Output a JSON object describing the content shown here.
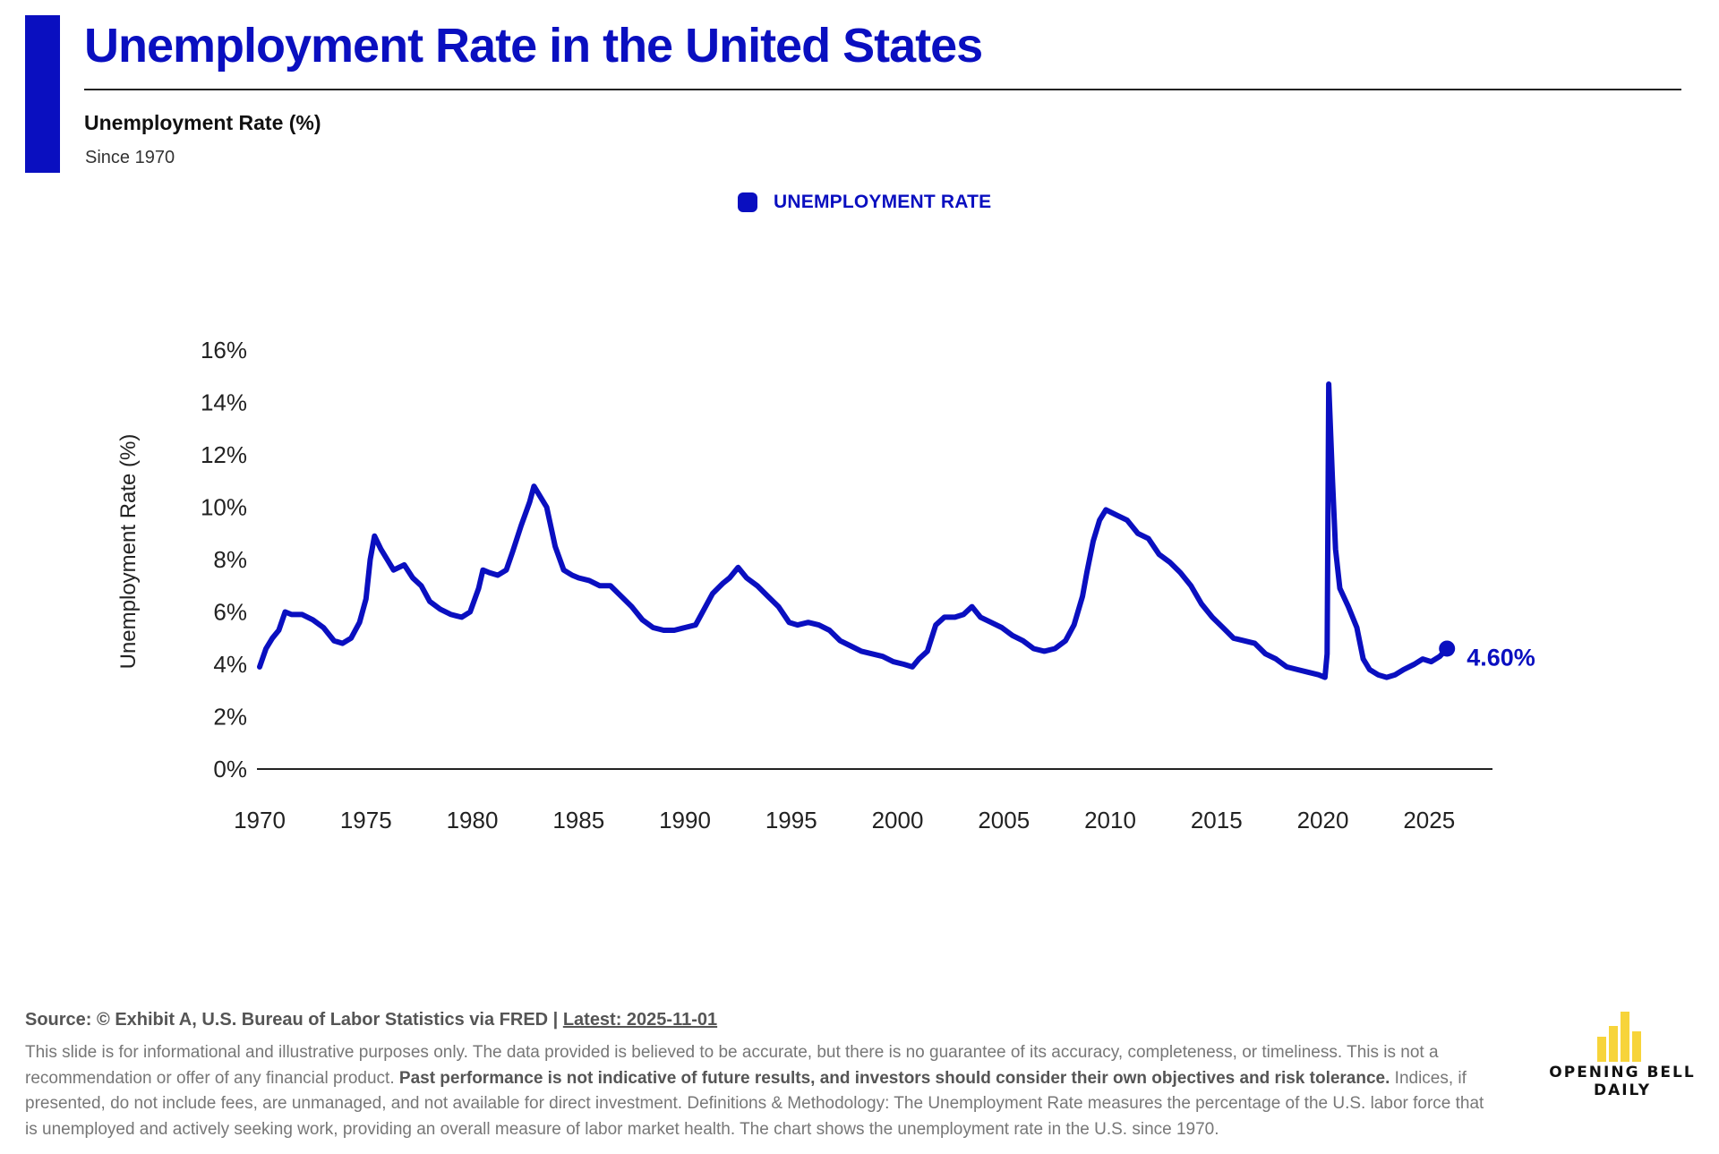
{
  "header": {
    "title": "Unemployment Rate in the United States",
    "subtitle": "Unemployment Rate (%)",
    "since": "Since 1970"
  },
  "colors": {
    "accent": "#0a0fc0",
    "logo": "#f7d43a"
  },
  "legend": {
    "label": "UNEMPLOYMENT RATE"
  },
  "chart_data": {
    "type": "line",
    "title": "Unemployment Rate in the United States",
    "xlabel": "",
    "ylabel": "Unemployment Rate (%)",
    "xlim": [
      1970,
      2026
    ],
    "ylim": [
      0,
      16
    ],
    "x_ticks": [
      1970,
      1975,
      1980,
      1985,
      1990,
      1995,
      2000,
      2005,
      2010,
      2015,
      2020,
      2025
    ],
    "y_ticks": [
      0,
      2,
      4,
      6,
      8,
      10,
      12,
      14,
      16
    ],
    "y_tick_labels": [
      "0%",
      "2%",
      "4%",
      "6%",
      "8%",
      "10%",
      "12%",
      "14%",
      "16%"
    ],
    "x_tick_labels": [
      "1970",
      "1975",
      "1980",
      "1985",
      "1990",
      "1995",
      "2000",
      "2005",
      "2010",
      "2015",
      "2020",
      "2025"
    ],
    "series": [
      {
        "name": "UNEMPLOYMENT RATE",
        "points": [
          [
            1970.0,
            3.9
          ],
          [
            1970.3,
            4.6
          ],
          [
            1970.6,
            5.0
          ],
          [
            1970.9,
            5.3
          ],
          [
            1971.2,
            6.0
          ],
          [
            1971.5,
            5.9
          ],
          [
            1972.0,
            5.9
          ],
          [
            1972.5,
            5.7
          ],
          [
            1973.0,
            5.4
          ],
          [
            1973.5,
            4.9
          ],
          [
            1973.9,
            4.8
          ],
          [
            1974.3,
            5.0
          ],
          [
            1974.7,
            5.6
          ],
          [
            1975.0,
            6.5
          ],
          [
            1975.2,
            8.0
          ],
          [
            1975.4,
            8.9
          ],
          [
            1975.7,
            8.4
          ],
          [
            1976.0,
            8.0
          ],
          [
            1976.3,
            7.6
          ],
          [
            1976.8,
            7.8
          ],
          [
            1977.2,
            7.3
          ],
          [
            1977.6,
            7.0
          ],
          [
            1978.0,
            6.4
          ],
          [
            1978.5,
            6.1
          ],
          [
            1979.0,
            5.9
          ],
          [
            1979.5,
            5.8
          ],
          [
            1979.9,
            6.0
          ],
          [
            1980.3,
            6.9
          ],
          [
            1980.5,
            7.6
          ],
          [
            1980.8,
            7.5
          ],
          [
            1981.2,
            7.4
          ],
          [
            1981.6,
            7.6
          ],
          [
            1981.9,
            8.3
          ],
          [
            1982.3,
            9.3
          ],
          [
            1982.7,
            10.2
          ],
          [
            1982.9,
            10.8
          ],
          [
            1983.2,
            10.4
          ],
          [
            1983.5,
            10.0
          ],
          [
            1983.9,
            8.5
          ],
          [
            1984.3,
            7.6
          ],
          [
            1984.7,
            7.4
          ],
          [
            1985.0,
            7.3
          ],
          [
            1985.5,
            7.2
          ],
          [
            1986.0,
            7.0
          ],
          [
            1986.5,
            7.0
          ],
          [
            1987.0,
            6.6
          ],
          [
            1987.5,
            6.2
          ],
          [
            1988.0,
            5.7
          ],
          [
            1988.5,
            5.4
          ],
          [
            1989.0,
            5.3
          ],
          [
            1989.5,
            5.3
          ],
          [
            1990.0,
            5.4
          ],
          [
            1990.5,
            5.5
          ],
          [
            1990.9,
            6.1
          ],
          [
            1991.3,
            6.7
          ],
          [
            1991.8,
            7.1
          ],
          [
            1992.1,
            7.3
          ],
          [
            1992.5,
            7.7
          ],
          [
            1992.9,
            7.3
          ],
          [
            1993.4,
            7.0
          ],
          [
            1993.9,
            6.6
          ],
          [
            1994.4,
            6.2
          ],
          [
            1994.9,
            5.6
          ],
          [
            1995.3,
            5.5
          ],
          [
            1995.8,
            5.6
          ],
          [
            1996.3,
            5.5
          ],
          [
            1996.8,
            5.3
          ],
          [
            1997.3,
            4.9
          ],
          [
            1997.8,
            4.7
          ],
          [
            1998.3,
            4.5
          ],
          [
            1998.8,
            4.4
          ],
          [
            1999.3,
            4.3
          ],
          [
            1999.8,
            4.1
          ],
          [
            2000.3,
            4.0
          ],
          [
            2000.7,
            3.9
          ],
          [
            2001.0,
            4.2
          ],
          [
            2001.4,
            4.5
          ],
          [
            2001.8,
            5.5
          ],
          [
            2002.2,
            5.8
          ],
          [
            2002.7,
            5.8
          ],
          [
            2003.1,
            5.9
          ],
          [
            2003.5,
            6.2
          ],
          [
            2003.9,
            5.8
          ],
          [
            2004.4,
            5.6
          ],
          [
            2004.9,
            5.4
          ],
          [
            2005.4,
            5.1
          ],
          [
            2005.9,
            4.9
          ],
          [
            2006.4,
            4.6
          ],
          [
            2006.9,
            4.5
          ],
          [
            2007.4,
            4.6
          ],
          [
            2007.9,
            4.9
          ],
          [
            2008.3,
            5.5
          ],
          [
            2008.7,
            6.6
          ],
          [
            2008.9,
            7.5
          ],
          [
            2009.2,
            8.7
          ],
          [
            2009.5,
            9.5
          ],
          [
            2009.8,
            9.9
          ],
          [
            2010.3,
            9.7
          ],
          [
            2010.8,
            9.5
          ],
          [
            2011.3,
            9.0
          ],
          [
            2011.8,
            8.8
          ],
          [
            2012.3,
            8.2
          ],
          [
            2012.8,
            7.9
          ],
          [
            2013.3,
            7.5
          ],
          [
            2013.8,
            7.0
          ],
          [
            2014.3,
            6.3
          ],
          [
            2014.8,
            5.8
          ],
          [
            2015.3,
            5.4
          ],
          [
            2015.8,
            5.0
          ],
          [
            2016.3,
            4.9
          ],
          [
            2016.8,
            4.8
          ],
          [
            2017.3,
            4.4
          ],
          [
            2017.8,
            4.2
          ],
          [
            2018.3,
            3.9
          ],
          [
            2018.8,
            3.8
          ],
          [
            2019.3,
            3.7
          ],
          [
            2019.8,
            3.6
          ],
          [
            2020.1,
            3.5
          ],
          [
            2020.2,
            4.4
          ],
          [
            2020.28,
            14.7
          ],
          [
            2020.45,
            11.1
          ],
          [
            2020.6,
            8.4
          ],
          [
            2020.8,
            6.9
          ],
          [
            2021.2,
            6.2
          ],
          [
            2021.6,
            5.4
          ],
          [
            2021.9,
            4.2
          ],
          [
            2022.2,
            3.8
          ],
          [
            2022.6,
            3.6
          ],
          [
            2023.0,
            3.5
          ],
          [
            2023.4,
            3.6
          ],
          [
            2023.8,
            3.8
          ],
          [
            2024.3,
            4.0
          ],
          [
            2024.7,
            4.2
          ],
          [
            2025.1,
            4.1
          ],
          [
            2025.5,
            4.3
          ],
          [
            2025.84,
            4.6
          ]
        ]
      }
    ],
    "annotations": [
      {
        "x": 2025.84,
        "y": 4.6,
        "text": "4.60%"
      }
    ]
  },
  "footer": {
    "source_prefix": "Source: © Exhibit A, U.S. Bureau of Labor Statistics via FRED | ",
    "latest": "Latest: 2025-11-01",
    "disclaimer_part1": "This slide is for informational and illustrative purposes only. The data provided is believed to be accurate, but there is no guarantee of its accuracy, completeness, or timeliness. This is not a recommendation or offer of any financial product. ",
    "disclaimer_bold": "Past performance is not indicative of future results, and investors should consider their own objectives and risk tolerance.",
    "disclaimer_part2": " Indices, if presented, do not include fees, are unmanaged, and not available for direct investment. Definitions & Methodology: The Unemployment Rate measures the percentage of the U.S. labor force that is unemployed and actively seeking work, providing an overall measure of labor market health. The chart shows the unemployment rate in the U.S. since 1970."
  },
  "logo": {
    "line1": "OPENING BELL",
    "line2": "DAILY"
  }
}
